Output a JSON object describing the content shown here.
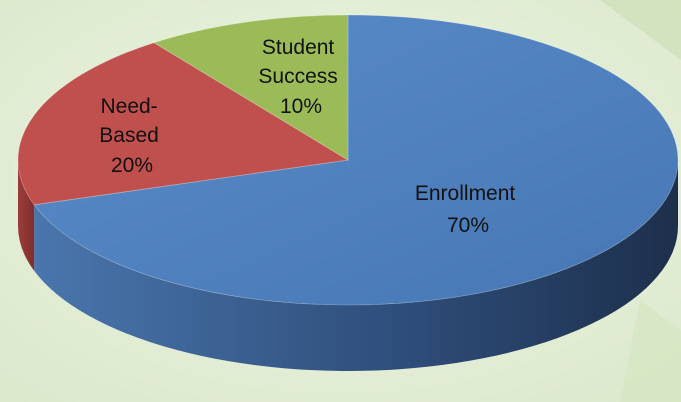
{
  "chart_data": {
    "type": "pie",
    "style": "3d",
    "title": "",
    "slices": [
      {
        "name": "Enrollment",
        "value": 70,
        "label": "70%",
        "color": "#4f81bd"
      },
      {
        "name": "Need-Based",
        "value": 20,
        "label": "20%",
        "color": "#c0504d"
      },
      {
        "name": "Student Success",
        "value": 10,
        "label": "10%",
        "color": "#9bbb59"
      }
    ],
    "label_lines": {
      "enrollment": [
        "Enrollment",
        "70%"
      ],
      "need_based": [
        "Need-",
        "Based",
        "20%"
      ],
      "student_success": [
        "Student",
        "Success",
        "10%"
      ]
    },
    "background": {
      "base": "#e6efda",
      "accent": "#cfe0b8"
    }
  }
}
